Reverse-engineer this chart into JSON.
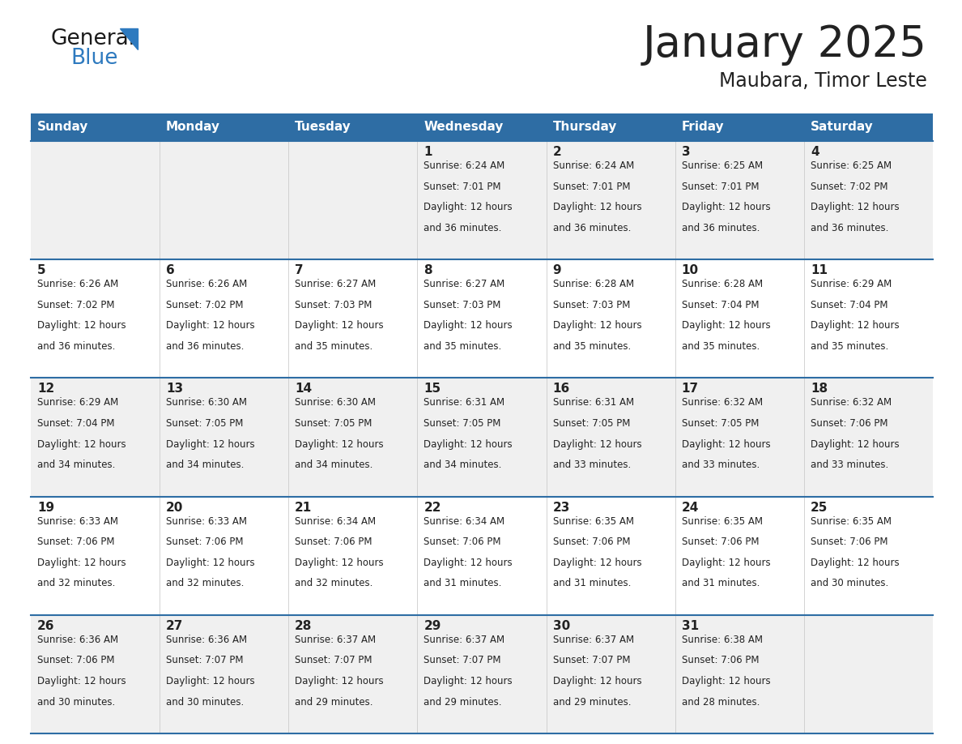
{
  "title": "January 2025",
  "subtitle": "Maubara, Timor Leste",
  "days_of_week": [
    "Sunday",
    "Monday",
    "Tuesday",
    "Wednesday",
    "Thursday",
    "Friday",
    "Saturday"
  ],
  "header_bg": "#2e6da4",
  "header_text": "#ffffff",
  "cell_bg_odd": "#f0f0f0",
  "cell_bg_even": "#ffffff",
  "divider_color": "#2e6da4",
  "text_color": "#222222",
  "title_color": "#222222",
  "logo_blue_color": "#2e7abf",
  "weeks": [
    {
      "days": [
        {
          "day": null,
          "sunrise": null,
          "sunset": null,
          "daylight": null
        },
        {
          "day": null,
          "sunrise": null,
          "sunset": null,
          "daylight": null
        },
        {
          "day": null,
          "sunrise": null,
          "sunset": null,
          "daylight": null
        },
        {
          "day": 1,
          "sunrise": "6:24 AM",
          "sunset": "7:01 PM",
          "daylight": "12 hours\nand 36 minutes."
        },
        {
          "day": 2,
          "sunrise": "6:24 AM",
          "sunset": "7:01 PM",
          "daylight": "12 hours\nand 36 minutes."
        },
        {
          "day": 3,
          "sunrise": "6:25 AM",
          "sunset": "7:01 PM",
          "daylight": "12 hours\nand 36 minutes."
        },
        {
          "day": 4,
          "sunrise": "6:25 AM",
          "sunset": "7:02 PM",
          "daylight": "12 hours\nand 36 minutes."
        }
      ]
    },
    {
      "days": [
        {
          "day": 5,
          "sunrise": "6:26 AM",
          "sunset": "7:02 PM",
          "daylight": "12 hours\nand 36 minutes."
        },
        {
          "day": 6,
          "sunrise": "6:26 AM",
          "sunset": "7:02 PM",
          "daylight": "12 hours\nand 36 minutes."
        },
        {
          "day": 7,
          "sunrise": "6:27 AM",
          "sunset": "7:03 PM",
          "daylight": "12 hours\nand 35 minutes."
        },
        {
          "day": 8,
          "sunrise": "6:27 AM",
          "sunset": "7:03 PM",
          "daylight": "12 hours\nand 35 minutes."
        },
        {
          "day": 9,
          "sunrise": "6:28 AM",
          "sunset": "7:03 PM",
          "daylight": "12 hours\nand 35 minutes."
        },
        {
          "day": 10,
          "sunrise": "6:28 AM",
          "sunset": "7:04 PM",
          "daylight": "12 hours\nand 35 minutes."
        },
        {
          "day": 11,
          "sunrise": "6:29 AM",
          "sunset": "7:04 PM",
          "daylight": "12 hours\nand 35 minutes."
        }
      ]
    },
    {
      "days": [
        {
          "day": 12,
          "sunrise": "6:29 AM",
          "sunset": "7:04 PM",
          "daylight": "12 hours\nand 34 minutes."
        },
        {
          "day": 13,
          "sunrise": "6:30 AM",
          "sunset": "7:05 PM",
          "daylight": "12 hours\nand 34 minutes."
        },
        {
          "day": 14,
          "sunrise": "6:30 AM",
          "sunset": "7:05 PM",
          "daylight": "12 hours\nand 34 minutes."
        },
        {
          "day": 15,
          "sunrise": "6:31 AM",
          "sunset": "7:05 PM",
          "daylight": "12 hours\nand 34 minutes."
        },
        {
          "day": 16,
          "sunrise": "6:31 AM",
          "sunset": "7:05 PM",
          "daylight": "12 hours\nand 33 minutes."
        },
        {
          "day": 17,
          "sunrise": "6:32 AM",
          "sunset": "7:05 PM",
          "daylight": "12 hours\nand 33 minutes."
        },
        {
          "day": 18,
          "sunrise": "6:32 AM",
          "sunset": "7:06 PM",
          "daylight": "12 hours\nand 33 minutes."
        }
      ]
    },
    {
      "days": [
        {
          "day": 19,
          "sunrise": "6:33 AM",
          "sunset": "7:06 PM",
          "daylight": "12 hours\nand 32 minutes."
        },
        {
          "day": 20,
          "sunrise": "6:33 AM",
          "sunset": "7:06 PM",
          "daylight": "12 hours\nand 32 minutes."
        },
        {
          "day": 21,
          "sunrise": "6:34 AM",
          "sunset": "7:06 PM",
          "daylight": "12 hours\nand 32 minutes."
        },
        {
          "day": 22,
          "sunrise": "6:34 AM",
          "sunset": "7:06 PM",
          "daylight": "12 hours\nand 31 minutes."
        },
        {
          "day": 23,
          "sunrise": "6:35 AM",
          "sunset": "7:06 PM",
          "daylight": "12 hours\nand 31 minutes."
        },
        {
          "day": 24,
          "sunrise": "6:35 AM",
          "sunset": "7:06 PM",
          "daylight": "12 hours\nand 31 minutes."
        },
        {
          "day": 25,
          "sunrise": "6:35 AM",
          "sunset": "7:06 PM",
          "daylight": "12 hours\nand 30 minutes."
        }
      ]
    },
    {
      "days": [
        {
          "day": 26,
          "sunrise": "6:36 AM",
          "sunset": "7:06 PM",
          "daylight": "12 hours\nand 30 minutes."
        },
        {
          "day": 27,
          "sunrise": "6:36 AM",
          "sunset": "7:07 PM",
          "daylight": "12 hours\nand 30 minutes."
        },
        {
          "day": 28,
          "sunrise": "6:37 AM",
          "sunset": "7:07 PM",
          "daylight": "12 hours\nand 29 minutes."
        },
        {
          "day": 29,
          "sunrise": "6:37 AM",
          "sunset": "7:07 PM",
          "daylight": "12 hours\nand 29 minutes."
        },
        {
          "day": 30,
          "sunrise": "6:37 AM",
          "sunset": "7:07 PM",
          "daylight": "12 hours\nand 29 minutes."
        },
        {
          "day": 31,
          "sunrise": "6:38 AM",
          "sunset": "7:06 PM",
          "daylight": "12 hours\nand 28 minutes."
        },
        {
          "day": null,
          "sunrise": null,
          "sunset": null,
          "daylight": null
        }
      ]
    }
  ]
}
